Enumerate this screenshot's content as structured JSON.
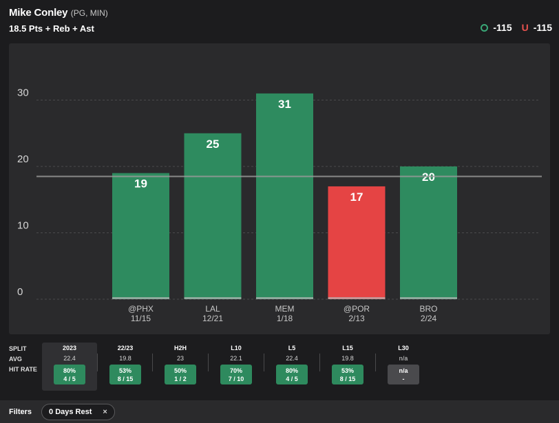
{
  "header": {
    "player_name": "Mike Conley",
    "player_meta": "(PG, MIN)",
    "prop_line": "18.5 Pts + Reb + Ast",
    "over_odds": "-115",
    "under_letter": "U",
    "under_odds": "-115"
  },
  "colors": {
    "over": "#2e8b5f",
    "under": "#e54444",
    "line": "#9a9a9a"
  },
  "chart_data": {
    "type": "bar",
    "categories": [
      "@PHX",
      "LAL",
      "MEM",
      "@POR",
      "BRO"
    ],
    "dates": [
      "11/15",
      "12/21",
      "1/18",
      "2/13",
      "2/24"
    ],
    "values": [
      19,
      25,
      31,
      17,
      20
    ],
    "threshold": 18.5,
    "yticks": [
      0,
      10,
      20,
      30
    ],
    "ylim": [
      0,
      35
    ],
    "title": "",
    "xlabel": "",
    "ylabel": ""
  },
  "splits": {
    "labels": [
      "SPLIT",
      "AVG",
      "HIT RATE"
    ],
    "columns": [
      {
        "name": "2023",
        "avg": "22.4",
        "pct": "80%",
        "ratio": "4 / 5",
        "active": true,
        "na": false
      },
      {
        "name": "22/23",
        "avg": "19.8",
        "pct": "53%",
        "ratio": "8 / 15",
        "active": false,
        "na": false
      },
      {
        "name": "H2H",
        "avg": "23",
        "pct": "50%",
        "ratio": "1 / 2",
        "active": false,
        "na": false
      },
      {
        "name": "L10",
        "avg": "22.1",
        "pct": "70%",
        "ratio": "7 / 10",
        "active": false,
        "na": false
      },
      {
        "name": "L5",
        "avg": "22.4",
        "pct": "80%",
        "ratio": "4 / 5",
        "active": false,
        "na": false
      },
      {
        "name": "L15",
        "avg": "19.8",
        "pct": "53%",
        "ratio": "8 / 15",
        "active": false,
        "na": false
      },
      {
        "name": "L30",
        "avg": "n/a",
        "pct": "n/a",
        "ratio": "-",
        "active": false,
        "na": true
      }
    ]
  },
  "filters": {
    "label": "Filters",
    "chip_label": "0 Days Rest",
    "chip_close": "×"
  }
}
